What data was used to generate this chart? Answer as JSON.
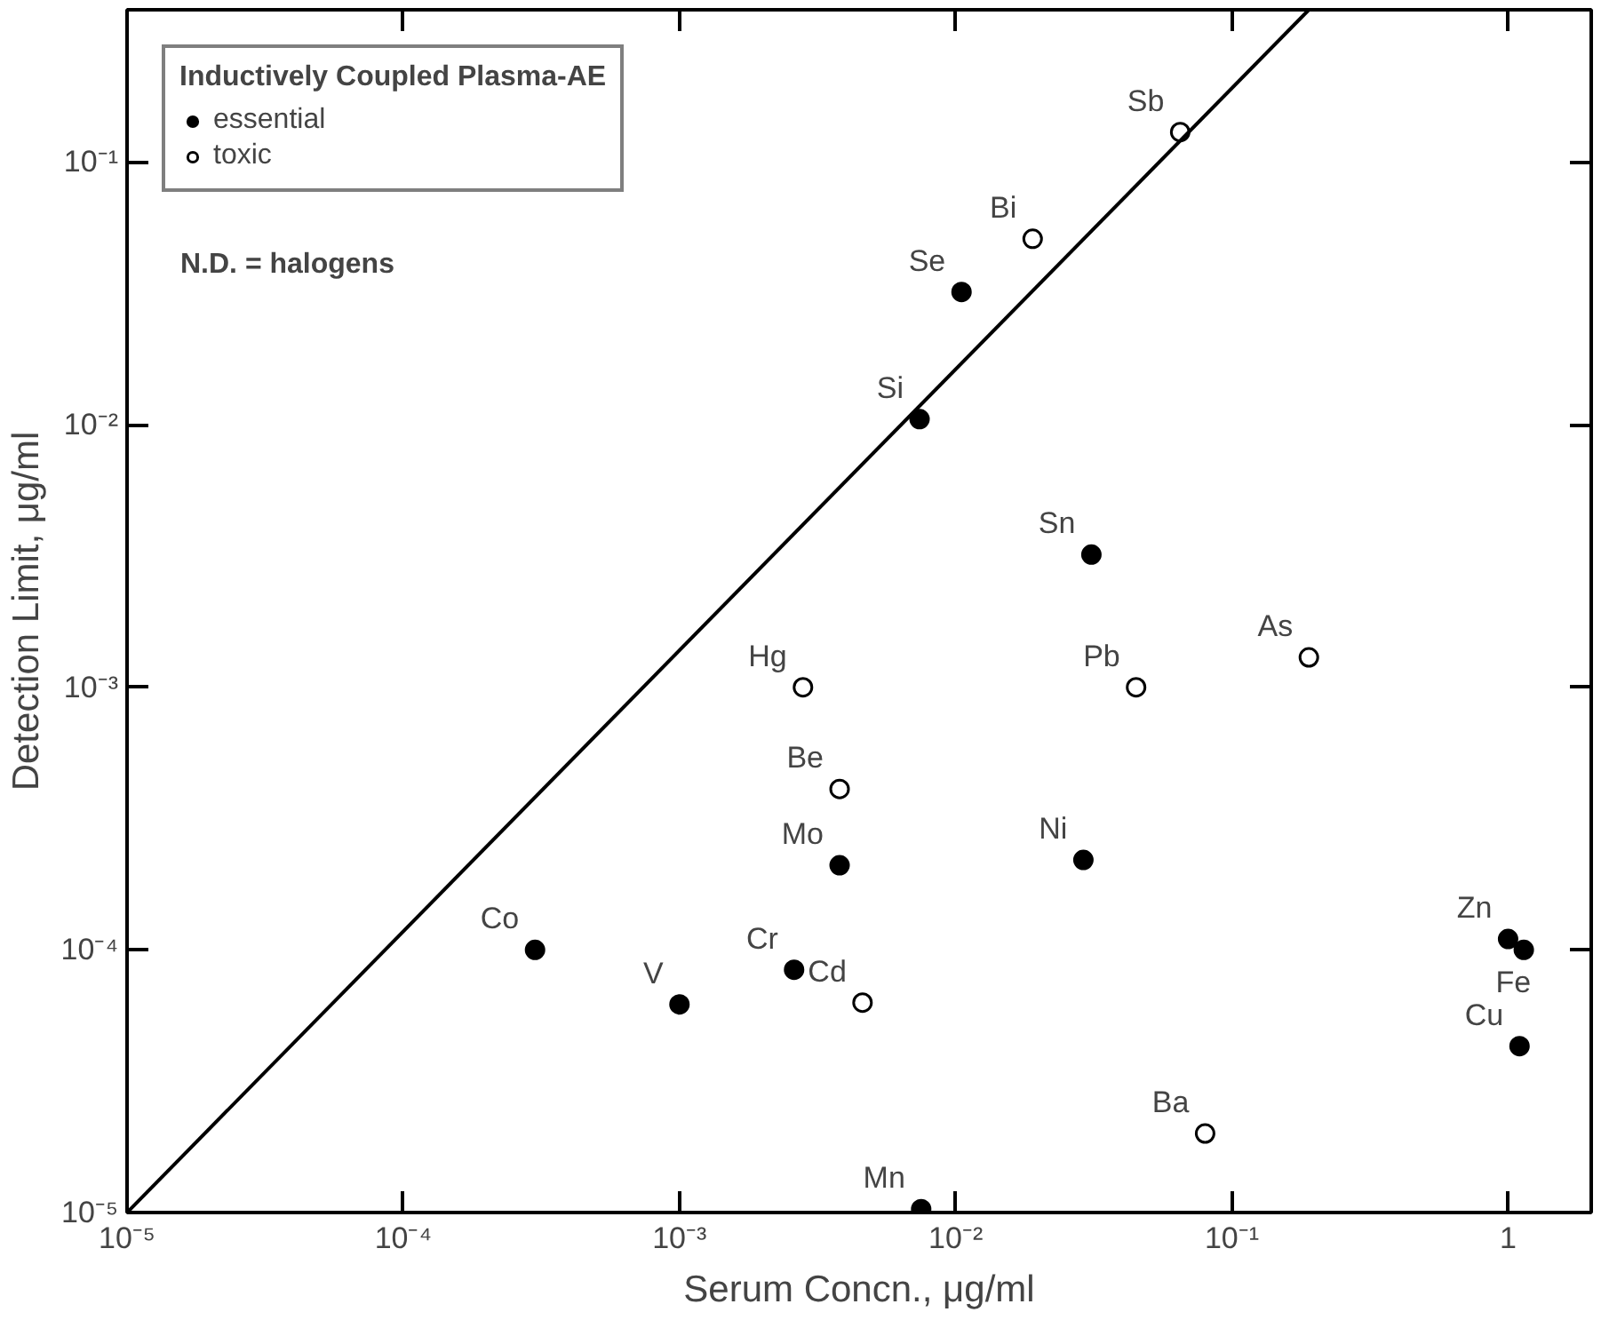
{
  "chart_data": {
    "type": "scatter",
    "xlabel": "Serum Concn., μg/ml",
    "ylabel": "Detection Limit, μg/ml",
    "legend_title": "Inductively Coupled Plasma-AE",
    "log": "xy",
    "legend": "top left",
    "grid": false,
    "xlim": [
      1e-05,
      2
    ],
    "ylim": [
      1e-05,
      0.38
    ],
    "xticks": [
      {
        "value": 1e-05,
        "label": "10⁻⁵"
      },
      {
        "value": 0.0001,
        "label": "10⁻⁴"
      },
      {
        "value": 0.001,
        "label": "10⁻³"
      },
      {
        "value": 0.01,
        "label": "10⁻²"
      },
      {
        "value": 0.1,
        "label": "10⁻¹"
      },
      {
        "value": 1,
        "label": "1"
      }
    ],
    "yticks": [
      {
        "value": 1e-05,
        "label": "10⁻⁵"
      },
      {
        "value": 0.0001,
        "label": "10⁻⁴"
      },
      {
        "value": 0.001,
        "label": "10⁻³"
      },
      {
        "value": 0.01,
        "label": "10⁻²"
      },
      {
        "value": 0.1,
        "label": "10⁻¹"
      }
    ],
    "series": [
      {
        "name": "essential",
        "color": "#000000",
        "marker": "circle",
        "x": [
          0.0003,
          0.001,
          0.0026,
          0.0038,
          0.0074,
          0.0105,
          0.031,
          0.029,
          1.0,
          1.14,
          1.1,
          0.0075
        ],
        "values": [
          0.0001,
          6.2e-05,
          8.4e-05,
          0.00021,
          0.0105,
          0.032,
          0.0032,
          0.00022,
          0.00011,
          0.0001,
          4.3e-05,
          1.03e-05
        ]
      },
      {
        "name": "toxic",
        "color": "#ffffff",
        "marker": "circle",
        "x": [
          0.0046,
          0.0038,
          0.0028,
          0.019,
          0.065,
          0.045,
          0.19,
          0.08
        ],
        "values": [
          6.3e-05,
          0.00041,
          0.001,
          0.051,
          0.13,
          0.001,
          0.0013,
          2e-05
        ]
      },
      {
        "type": "line",
        "color": "#000000",
        "x": [
          1e-05,
          0.19
        ],
        "values": [
          1e-05,
          0.38
        ]
      }
    ],
    "annotations": [
      "N.D. = halogens",
      {
        "text": "Co",
        "x": 0.0003,
        "y": 0.0001
      },
      {
        "text": "V",
        "x": 0.001,
        "y": 6.2e-05
      },
      {
        "text": "Cr",
        "x": 0.0026,
        "y": 8.4e-05
      },
      {
        "text": "Mo",
        "x": 0.0038,
        "y": 0.00021
      },
      {
        "text": "Si",
        "x": 0.0074,
        "y": 0.0105
      },
      {
        "text": "Se",
        "x": 0.0105,
        "y": 0.032
      },
      {
        "text": "Sn",
        "x": 0.031,
        "y": 0.0032
      },
      {
        "text": "Ni",
        "x": 0.029,
        "y": 0.00022
      },
      {
        "text": "Zn",
        "x": 1.0,
        "y": 0.00011
      },
      {
        "text": "Fe",
        "x": 1.14,
        "y": 0.0001
      },
      {
        "text": "Cu",
        "x": 1.1,
        "y": 4.3e-05
      },
      {
        "text": "Mn",
        "x": 0.0075,
        "y": 1.03e-05
      },
      {
        "text": "Cd",
        "x": 0.0046,
        "y": 6.3e-05
      },
      {
        "text": "Be",
        "x": 0.0038,
        "y": 0.00041
      },
      {
        "text": "Hg",
        "x": 0.0028,
        "y": 0.001
      },
      {
        "text": "Bi",
        "x": 0.019,
        "y": 0.051
      },
      {
        "text": "Sb",
        "x": 0.065,
        "y": 0.13
      },
      {
        "text": "Pb",
        "x": 0.045,
        "y": 0.001
      },
      {
        "text": "As",
        "x": 0.19,
        "y": 0.0013
      },
      {
        "text": "Ba",
        "x": 0.08,
        "y": 2e-05
      }
    ]
  }
}
